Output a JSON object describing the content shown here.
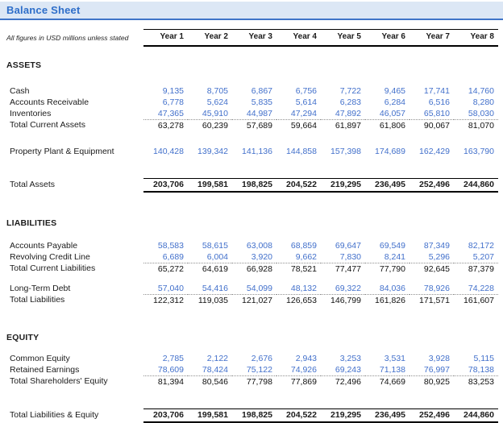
{
  "title": "Balance Sheet",
  "note": "All figures in USD millions unless stated",
  "colors": {
    "title_text": "#2e6ec9",
    "title_background": "#dce7f5",
    "title_border": "#3f74c8",
    "data_value_blue": "#4270cb",
    "total_rule_black": "#000000"
  },
  "table": {
    "year_headers": [
      "Year 1",
      "Year 2",
      "Year 3",
      "Year 4",
      "Year 5",
      "Year 6",
      "Year 7",
      "Year 8"
    ],
    "rows": [
      {
        "type": "spacer",
        "gap": "g14"
      },
      {
        "type": "section",
        "label": "ASSETS"
      },
      {
        "type": "spacer",
        "gap": "g16"
      },
      {
        "type": "item",
        "label": "Cash",
        "values": [
          "9,135",
          "8,705",
          "6,867",
          "6,756",
          "7,722",
          "9,465",
          "17,741",
          "14,760"
        ]
      },
      {
        "type": "item",
        "label": "Accounts Receivable",
        "values": [
          "6,778",
          "5,624",
          "5,835",
          "5,614",
          "6,283",
          "6,284",
          "6,516",
          "8,280"
        ]
      },
      {
        "type": "item underline",
        "label": "Inventories",
        "values": [
          "47,365",
          "45,910",
          "44,987",
          "47,294",
          "47,892",
          "46,057",
          "65,810",
          "58,030"
        ]
      },
      {
        "type": "subtotal",
        "label": "Total Current Assets",
        "values": [
          "63,278",
          "60,239",
          "57,689",
          "59,664",
          "61,897",
          "61,806",
          "90,067",
          "81,070"
        ]
      },
      {
        "type": "spacer",
        "gap": "g18"
      },
      {
        "type": "item",
        "label": "Property Plant & Equipment",
        "values": [
          "140,428",
          "139,342",
          "141,136",
          "144,858",
          "157,398",
          "174,689",
          "162,429",
          "163,790"
        ]
      },
      {
        "type": "spacer",
        "gap": "g26"
      },
      {
        "type": "grandtotal",
        "label": "Total Assets",
        "values": [
          "203,706",
          "199,581",
          "198,825",
          "204,522",
          "219,295",
          "236,495",
          "252,496",
          "244,860"
        ]
      },
      {
        "type": "spacer",
        "gap": "g29"
      },
      {
        "type": "section",
        "label": "LIABILITIES"
      },
      {
        "type": "spacer",
        "gap": "g12"
      },
      {
        "type": "item",
        "label": "Accounts Payable",
        "values": [
          "58,583",
          "58,615",
          "63,008",
          "68,859",
          "69,647",
          "69,549",
          "87,349",
          "82,172"
        ]
      },
      {
        "type": "item underline",
        "label": "Revolving Credit Line",
        "values": [
          "6,689",
          "6,004",
          "3,920",
          "9,662",
          "7,830",
          "8,241",
          "5,296",
          "5,207"
        ]
      },
      {
        "type": "subtotal",
        "label": "Total Current Liabilities",
        "values": [
          "65,272",
          "64,619",
          "66,928",
          "78,521",
          "77,477",
          "77,790",
          "92,645",
          "87,379"
        ]
      },
      {
        "type": "spacer",
        "gap": "g10"
      },
      {
        "type": "item underline",
        "label": "Long-Term Debt",
        "values": [
          "57,040",
          "54,416",
          "54,099",
          "48,132",
          "69,322",
          "84,036",
          "78,926",
          "74,228"
        ]
      },
      {
        "type": "subtotal",
        "label": "Total Liabilities",
        "values": [
          "122,312",
          "119,035",
          "121,027",
          "126,653",
          "146,799",
          "161,826",
          "171,571",
          "161,607"
        ]
      },
      {
        "type": "spacer",
        "gap": "g30"
      },
      {
        "type": "section",
        "label": "EQUITY"
      },
      {
        "type": "spacer",
        "gap": "g10"
      },
      {
        "type": "item",
        "label": "Common Equity",
        "values": [
          "2,785",
          "2,122",
          "2,676",
          "2,943",
          "3,253",
          "3,531",
          "3,928",
          "5,115"
        ]
      },
      {
        "type": "item underline",
        "label": "Retained Earnings",
        "values": [
          "78,609",
          "78,424",
          "75,122",
          "74,926",
          "69,243",
          "71,138",
          "76,997",
          "78,138"
        ]
      },
      {
        "type": "subtotal",
        "label": "Total Shareholders' Equity",
        "values": [
          "81,394",
          "80,546",
          "77,798",
          "77,869",
          "72,496",
          "74,669",
          "80,925",
          "83,253"
        ]
      },
      {
        "type": "spacer",
        "gap": "g26"
      },
      {
        "type": "grandtotal",
        "label": "Total Liabilities & Equity",
        "values": [
          "203,706",
          "199,581",
          "198,825",
          "204,522",
          "219,295",
          "236,495",
          "252,496",
          "244,860"
        ]
      }
    ]
  }
}
